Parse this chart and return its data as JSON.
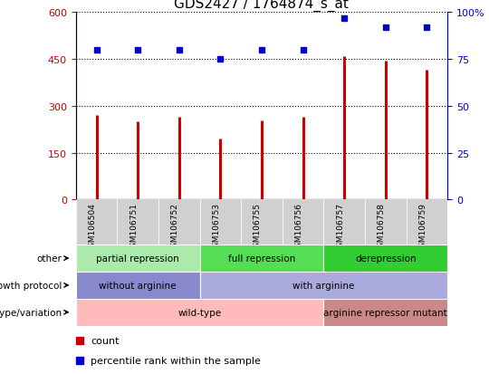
{
  "title": "GDS2427 / 1764874_s_at",
  "samples": [
    "GSM106504",
    "GSM106751",
    "GSM106752",
    "GSM106753",
    "GSM106755",
    "GSM106756",
    "GSM106757",
    "GSM106758",
    "GSM106759"
  ],
  "counts": [
    270,
    250,
    265,
    195,
    255,
    265,
    460,
    445,
    415
  ],
  "percentile_ranks": [
    80,
    80,
    80,
    75,
    80,
    80,
    97,
    92,
    92
  ],
  "ylim_left": [
    0,
    600
  ],
  "ylim_right": [
    0,
    100
  ],
  "yticks_left": [
    0,
    150,
    300,
    450,
    600
  ],
  "yticks_right": [
    0,
    25,
    50,
    75,
    100
  ],
  "bar_color": "#cc0000",
  "dot_color": "#0000cc",
  "annotation_rows": [
    {
      "label": "other",
      "segments": [
        {
          "text": "partial repression",
          "start": 0,
          "end": 3,
          "color": "#aaeaaa"
        },
        {
          "text": "full repression",
          "start": 3,
          "end": 6,
          "color": "#55dd55"
        },
        {
          "text": "derepression",
          "start": 6,
          "end": 9,
          "color": "#33cc33"
        }
      ]
    },
    {
      "label": "growth protocol",
      "segments": [
        {
          "text": "without arginine",
          "start": 0,
          "end": 3,
          "color": "#8888cc"
        },
        {
          "text": "with arginine",
          "start": 3,
          "end": 9,
          "color": "#aaaadd"
        }
      ]
    },
    {
      "label": "genotype/variation",
      "segments": [
        {
          "text": "wild-type",
          "start": 0,
          "end": 6,
          "color": "#ffbbbb"
        },
        {
          "text": "arginine repressor mutant",
          "start": 6,
          "end": 9,
          "color": "#cc8888"
        }
      ]
    }
  ],
  "legend_items": [
    {
      "label": "count",
      "color": "#cc0000"
    },
    {
      "label": "percentile rank within the sample",
      "color": "#0000cc"
    }
  ]
}
